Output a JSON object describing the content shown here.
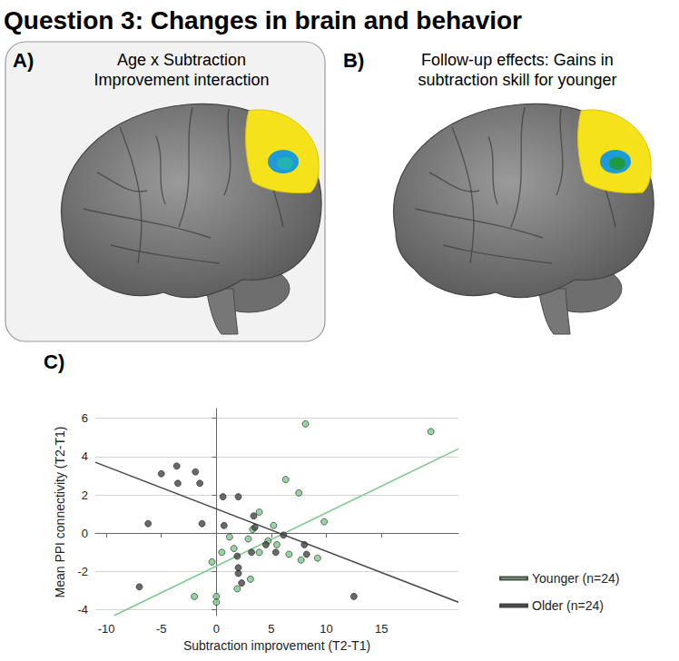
{
  "figure": {
    "title": "Question 3: Changes in brain and behavior",
    "panels": [
      {
        "label": "A)",
        "caption": "Age x Subtraction Improvement interaction"
      },
      {
        "label": "B)",
        "caption": "Follow-up effects: Gains in subtraction skill for younger"
      }
    ]
  },
  "chart_data": {
    "type": "scatter",
    "label": "C)",
    "x_label": "Subtraction improvement (T2-T1)",
    "y_label": "Mean PPI connectivity (T2-T1)",
    "xlim": [
      -11,
      22
    ],
    "xticks": [
      -10,
      -5,
      0,
      5,
      10,
      15
    ],
    "ylim": [
      -4.3,
      6.5
    ],
    "yticks": [
      -4,
      -2,
      0,
      2,
      4,
      6
    ],
    "grid": true,
    "legend": "right",
    "series": [
      {
        "name": "Younger (n=24)",
        "color": "#7cc98a",
        "marker": "circle",
        "x": [
          19.5,
          8.1,
          6.3,
          7.5,
          9.8,
          5.2,
          3.9,
          3.3,
          2.9,
          1.2,
          1.6,
          0.5,
          -0.4,
          3.9,
          5.5,
          4.7,
          9.2,
          6.6,
          7.7,
          3.1,
          1.9,
          0.0,
          0.0,
          -2.0
        ],
        "values": [
          5.3,
          5.7,
          2.8,
          2.1,
          0.6,
          0.4,
          1.1,
          0.2,
          -0.3,
          -0.2,
          -0.8,
          -1.0,
          -1.5,
          -1.0,
          -0.6,
          -0.4,
          -1.3,
          -1.1,
          -1.4,
          -2.4,
          -2.9,
          -3.3,
          -3.6,
          -3.3
        ],
        "fit_line": {
          "line_style": "solid",
          "x": [
            -9.3,
            22
          ],
          "values": [
            -4.3,
            4.4
          ]
        }
      },
      {
        "name": "Older (n=24)",
        "color": "#444444",
        "marker": "circle",
        "x": [
          -3.6,
          -3.5,
          -5.0,
          -1.9,
          -1.5,
          0.6,
          2.0,
          0.7,
          3.4,
          3.5,
          6.1,
          8.0,
          8.2,
          5.4,
          4.5,
          3.2,
          1.9,
          -1.3,
          -6.2,
          -7.0,
          2.0,
          2.0,
          2.3,
          12.5
        ],
        "values": [
          3.5,
          2.6,
          3.1,
          3.2,
          2.6,
          1.9,
          1.9,
          0.4,
          0.9,
          0.3,
          -0.1,
          -0.6,
          -1.1,
          -1.0,
          -0.6,
          -1.0,
          -1.2,
          0.5,
          0.5,
          -2.8,
          -1.8,
          -2.1,
          -2.6,
          -3.3
        ],
        "fit_line": {
          "line_style": "solid",
          "x": [
            -11,
            22
          ],
          "values": [
            3.7,
            -3.6
          ]
        }
      }
    ]
  }
}
